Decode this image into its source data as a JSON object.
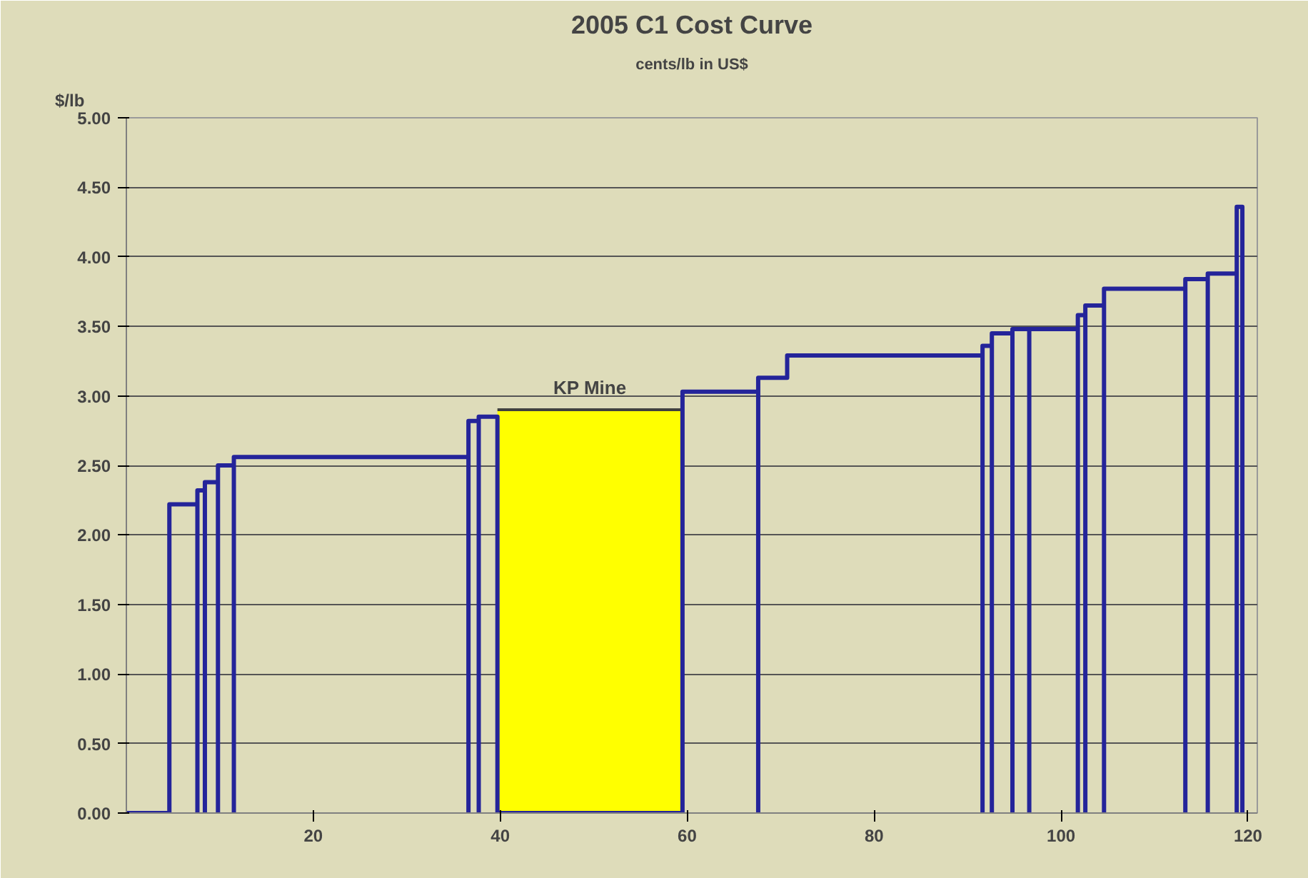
{
  "chart_data": {
    "type": "line",
    "title": "2005 C1 Cost Curve",
    "subtitle": "cents/lb in US$",
    "ylabel": "$/lb",
    "xlim": [
      0,
      121
    ],
    "ylim": [
      0,
      5
    ],
    "xticks": [
      20,
      40,
      60,
      80,
      100,
      120
    ],
    "yticks": [
      {
        "value": 0,
        "label": "0.00"
      },
      {
        "value": 0.5,
        "label": "0.50"
      },
      {
        "value": 1,
        "label": "1.00"
      },
      {
        "value": 1.5,
        "label": "1.50"
      },
      {
        "value": 2,
        "label": "2.00"
      },
      {
        "value": 2.5,
        "label": "2.50"
      },
      {
        "value": 3,
        "label": "3.00"
      },
      {
        "value": 3.5,
        "label": "3.50"
      },
      {
        "value": 4,
        "label": "4.00"
      },
      {
        "value": 4.5,
        "label": "4.50"
      },
      {
        "value": 5,
        "label": "5.00"
      }
    ],
    "grid": "y",
    "marker": "none",
    "line_style": "solid",
    "series": [
      {
        "color": "#24249a",
        "x": [
          0,
          4.6,
          4.6,
          7.6,
          7.6,
          7.6,
          8.4,
          8.4,
          8.4,
          9.8,
          9.8,
          9.8,
          11.5,
          11.5,
          11.5,
          36.6,
          36.6,
          36.6,
          37.7,
          37.7,
          37.7,
          39.7,
          39.7,
          59.5,
          59.5,
          67.6,
          67.6,
          67.6,
          70.7,
          70.7,
          91.6,
          91.6,
          91.6,
          92.6,
          92.6,
          92.6,
          94.8,
          94.8,
          94.8,
          96.6,
          96.6,
          96.6,
          101.8,
          101.8,
          101.8,
          102.6,
          102.6,
          102.6,
          104.6,
          104.6,
          104.6,
          113.3,
          113.3,
          113.3,
          115.7,
          115.7,
          115.7,
          118.8,
          118.8,
          118.8,
          119.4,
          119.4
        ],
        "values": [
          0,
          0,
          2.22,
          2.22,
          0,
          2.32,
          2.32,
          0,
          2.38,
          2.38,
          0,
          2.5,
          2.5,
          0,
          2.56,
          2.56,
          0,
          2.82,
          2.82,
          0,
          2.85,
          2.85,
          0,
          0,
          3.03,
          3.03,
          0,
          3.13,
          3.13,
          3.29,
          3.29,
          0,
          3.36,
          3.36,
          0,
          3.45,
          3.45,
          0,
          3.48,
          3.48,
          0,
          3.48,
          3.48,
          0,
          3.58,
          3.58,
          0,
          3.65,
          3.65,
          0,
          3.77,
          3.77,
          0,
          3.84,
          3.84,
          0,
          3.88,
          3.88,
          0,
          4.36,
          4.36,
          0
        ]
      },
      {
        "type": "area",
        "color": "#ffff00",
        "x": [
          39.7,
          59.5
        ],
        "values": [
          2.9,
          2.9
        ]
      }
    ],
    "annotations": [
      {
        "text": "KP Mine",
        "x": 49.6,
        "y": 2.9
      }
    ]
  }
}
